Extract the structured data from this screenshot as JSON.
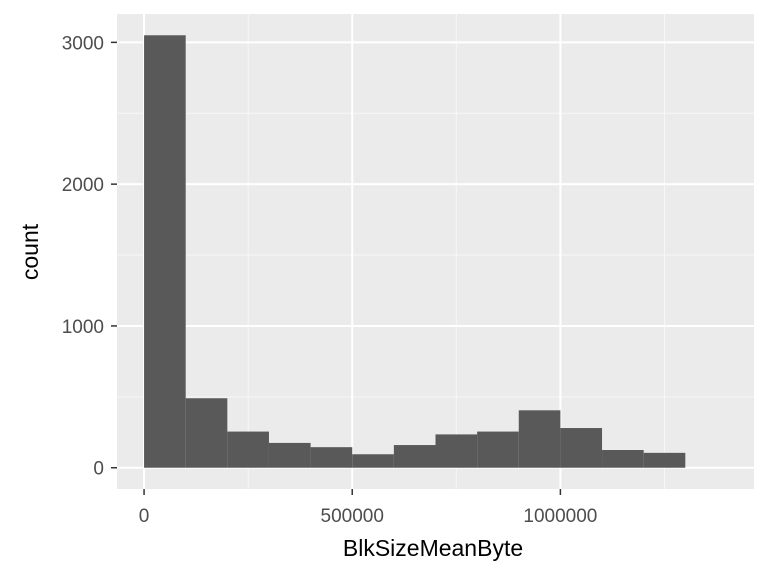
{
  "chart_data": {
    "type": "bar",
    "subtype": "histogram",
    "xlabel": "BlkSizeMeanByte",
    "ylabel": "count",
    "xlim": [
      -65000,
      1465000
    ],
    "ylim": [
      -150,
      3200
    ],
    "x_ticks": [
      0,
      500000,
      1000000
    ],
    "x_tick_labels": [
      "0",
      "500000",
      "1000000"
    ],
    "x_minor_ticks": [
      250000,
      750000,
      1250000
    ],
    "y_ticks": [
      0,
      1000,
      2000,
      3000
    ],
    "y_tick_labels": [
      "0",
      "1000",
      "2000",
      "3000"
    ],
    "y_minor_ticks": [
      500,
      1500,
      2500
    ],
    "grid": true,
    "bin_width": 100000,
    "bins": [
      {
        "x0": 0,
        "x1": 100000,
        "count": 3050
      },
      {
        "x0": 100000,
        "x1": 200000,
        "count": 490
      },
      {
        "x0": 200000,
        "x1": 300000,
        "count": 255
      },
      {
        "x0": 300000,
        "x1": 400000,
        "count": 175
      },
      {
        "x0": 400000,
        "x1": 500000,
        "count": 145
      },
      {
        "x0": 500000,
        "x1": 600000,
        "count": 95
      },
      {
        "x0": 600000,
        "x1": 700000,
        "count": 160
      },
      {
        "x0": 700000,
        "x1": 800000,
        "count": 235
      },
      {
        "x0": 800000,
        "x1": 900000,
        "count": 255
      },
      {
        "x0": 900000,
        "x1": 1000000,
        "count": 405
      },
      {
        "x0": 1000000,
        "x1": 1100000,
        "count": 280
      },
      {
        "x0": 1100000,
        "x1": 1200000,
        "count": 125
      },
      {
        "x0": 1200000,
        "x1": 1300000,
        "count": 105
      }
    ],
    "colors": {
      "panel_background": "#ebebeb",
      "grid_major": "#ffffff",
      "grid_minor": "#f7f7f7",
      "bar_fill": "#595959",
      "tick_text": "#4d4d4d",
      "axis_title": "#000000",
      "tick_mark": "#333333"
    }
  }
}
